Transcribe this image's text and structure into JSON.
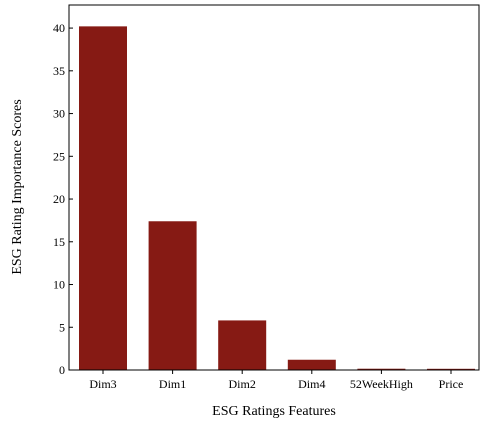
{
  "chart_data": {
    "type": "bar",
    "title": "",
    "xlabel": "ESG Ratings Features",
    "ylabel": "ESG Rating Importance Scores",
    "categories": [
      "Dim3",
      "Dim1",
      "Dim2",
      "Dim4",
      "52WeekHigh",
      "Price"
    ],
    "values": [
      40.2,
      17.4,
      5.8,
      1.2,
      0.15,
      0.1
    ],
    "ylim": [
      0,
      42.7
    ],
    "yticks": [
      0,
      5,
      10,
      15,
      20,
      25,
      30,
      35,
      40
    ],
    "grid": false,
    "legend": "none",
    "bar_color": "#861a14"
  }
}
